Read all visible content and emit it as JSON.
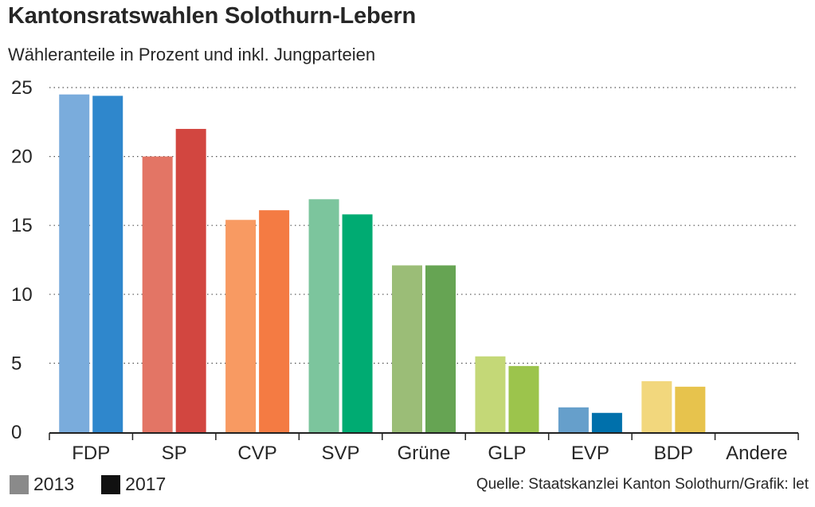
{
  "header": {
    "title": "Kantonsratswahlen Solothurn-Lebern",
    "subtitle": "Wähleranteile in Prozent und inkl. Jungparteien"
  },
  "legend": {
    "items": [
      {
        "label": "2013",
        "color": "#8a8a8a"
      },
      {
        "label": "2017",
        "color": "#111111"
      }
    ]
  },
  "source": "Quelle: Staatskanzlei Kanton Solothurn/Grafik: let",
  "chart_data": {
    "type": "bar",
    "title": "Kantonsratswahlen Solothurn-Lebern",
    "subtitle": "Wähleranteile in Prozent und inkl. Jungparteien",
    "xlabel": "",
    "ylabel": "",
    "ylim": [
      0,
      25
    ],
    "yticks": [
      0,
      5,
      10,
      15,
      20,
      25
    ],
    "grid": "dotted horizontal",
    "categories": [
      "FDP",
      "SP",
      "CVP",
      "SVP",
      "Grüne",
      "GLP",
      "EVP",
      "BDP",
      "Andere"
    ],
    "series": [
      {
        "name": "2013",
        "values": [
          24.5,
          20.0,
          15.4,
          16.9,
          12.1,
          5.5,
          1.8,
          3.7,
          0
        ]
      },
      {
        "name": "2017",
        "values": [
          24.4,
          22.0,
          16.1,
          15.8,
          12.1,
          4.8,
          1.4,
          3.3,
          0
        ]
      }
    ],
    "colors_2013": [
      "#7aacdc",
      "#e37565",
      "#f89a62",
      "#7cc59d",
      "#9bbd77",
      "#c4d877",
      "#669fcb",
      "#f2d77d",
      "#cccccc"
    ],
    "colors_2017": [
      "#2f87cc",
      "#d24640",
      "#f47b43",
      "#00ab72",
      "#66a453",
      "#9cc44c",
      "#0070ab",
      "#e7c34d",
      "#999999"
    ]
  }
}
